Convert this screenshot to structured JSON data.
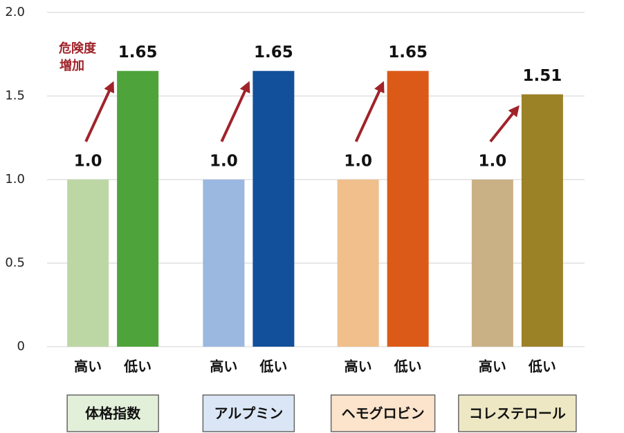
{
  "chart_data": {
    "type": "bar",
    "categories": [
      "体格指数",
      "アルプミン",
      "ヘモグロビン",
      "コレステロール"
    ],
    "category_colors": [
      "#e2efd9",
      "#dae6f5",
      "#fbe3cc",
      "#ede7c4"
    ],
    "series": [
      {
        "name": "高い",
        "colors": [
          "#bdd7a4",
          "#9ab8e0",
          "#f0bf8c",
          "#c9b185"
        ],
        "values": [
          1,
          1,
          1,
          1
        ],
        "value_labels": [
          "1.0",
          "1.0",
          "1.0",
          "1.0"
        ]
      },
      {
        "name": "低い",
        "colors": [
          "#4ea43a",
          "#13509b",
          "#dc5a18",
          "#9c8227"
        ],
        "values": [
          1.65,
          1.65,
          1.65,
          1.51
        ]
      }
    ],
    "ylim": [
      0,
      2
    ],
    "yticks": [
      0,
      0.5,
      {
        "value": 1,
        "label": "1.0"
      },
      1.5,
      {
        "value": 2,
        "label": "2.0"
      }
    ],
    "grid": true,
    "annotation": [
      "危険度",
      "増加"
    ],
    "arrow_color": "#a0232a"
  }
}
